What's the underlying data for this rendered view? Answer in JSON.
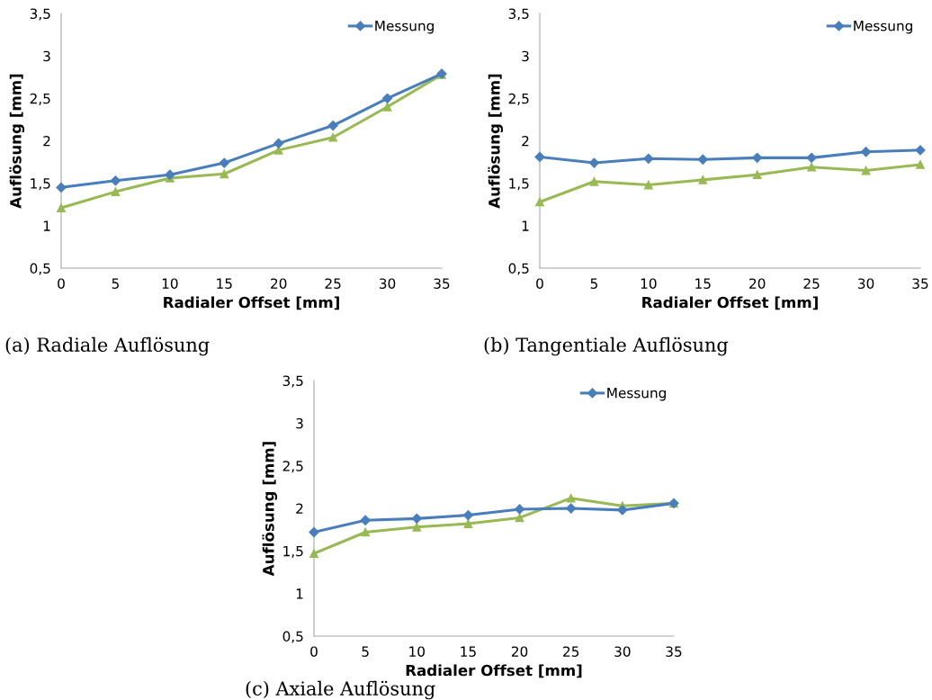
{
  "chart_data": [
    {
      "type": "line",
      "title": "(a) Radiale Auflösung",
      "xlabel": "Radialer Offset [mm]",
      "ylabel": "Auflösung [mm]",
      "x": [
        0,
        5,
        10,
        15,
        20,
        25,
        30,
        35
      ],
      "xlim": [
        0,
        35
      ],
      "xticks": [
        0,
        5,
        10,
        15,
        20,
        25,
        30,
        35
      ],
      "ylim": [
        0.5,
        3.5
      ],
      "yticks": [
        {
          "value": 0.5,
          "label": "0,5"
        },
        1,
        {
          "value": 1.5,
          "label": "1,5"
        },
        2,
        {
          "value": 2.5,
          "label": "2,5"
        },
        3,
        {
          "value": 3.5,
          "label": "3,5"
        }
      ],
      "grid": false,
      "legend": "top right",
      "series": [
        {
          "name": "Messung",
          "color": "#4a7ebb",
          "marker": "diamond",
          "values": [
            1.45,
            1.53,
            1.6,
            1.74,
            1.97,
            2.18,
            2.5,
            2.79
          ]
        },
        {
          "color": "#98b954",
          "marker": "triangle",
          "values": [
            1.21,
            1.4,
            1.56,
            1.61,
            1.89,
            2.04,
            2.4,
            2.78
          ]
        }
      ]
    },
    {
      "type": "line",
      "title": "(b) Tangentiale Auflösung",
      "xlabel": "Radialer Offset [mm]",
      "ylabel": "Auflösung [mm]",
      "x": [
        0,
        5,
        10,
        15,
        20,
        25,
        30,
        35
      ],
      "xlim": [
        0,
        35
      ],
      "xticks": [
        0,
        5,
        10,
        15,
        20,
        25,
        30,
        35
      ],
      "ylim": [
        0.5,
        3.5
      ],
      "yticks": [
        {
          "value": 0.5,
          "label": "0,5"
        },
        1,
        {
          "value": 1.5,
          "label": "1,5"
        },
        2,
        {
          "value": 2.5,
          "label": "2,5"
        },
        3,
        {
          "value": 3.5,
          "label": "3,5"
        }
      ],
      "grid": false,
      "legend": "top right",
      "series": [
        {
          "name": "Messung",
          "color": "#4a7ebb",
          "marker": "diamond",
          "values": [
            1.81,
            1.74,
            1.79,
            1.78,
            1.8,
            1.8,
            1.87,
            1.89
          ]
        },
        {
          "color": "#98b954",
          "marker": "triangle",
          "values": [
            1.28,
            1.52,
            1.48,
            1.54,
            1.6,
            1.69,
            1.65,
            1.72
          ]
        }
      ]
    },
    {
      "type": "line",
      "title": "(c) Axiale Auflösung",
      "xlabel": "Radialer Offset [mm]",
      "ylabel": "Auflösung [mm]",
      "x": [
        0,
        5,
        10,
        15,
        20,
        25,
        30,
        35
      ],
      "xlim": [
        0,
        35
      ],
      "xticks": [
        0,
        5,
        10,
        15,
        20,
        25,
        30,
        35
      ],
      "ylim": [
        0.5,
        3.5
      ],
      "yticks": [
        {
          "value": 0.5,
          "label": "0,5"
        },
        1,
        {
          "value": 1.5,
          "label": "1,5"
        },
        2,
        {
          "value": 2.5,
          "label": "2,5"
        },
        3,
        {
          "value": 3.5,
          "label": "3,5"
        }
      ],
      "grid": false,
      "legend": "top right",
      "series": [
        {
          "name": "Messung",
          "color": "#4a7ebb",
          "marker": "diamond",
          "values": [
            1.72,
            1.86,
            1.88,
            1.92,
            1.99,
            2.0,
            1.98,
            2.06
          ]
        },
        {
          "color": "#98b954",
          "marker": "triangle",
          "values": [
            1.47,
            1.72,
            1.78,
            1.82,
            1.89,
            2.12,
            2.03,
            2.06
          ]
        }
      ]
    }
  ]
}
